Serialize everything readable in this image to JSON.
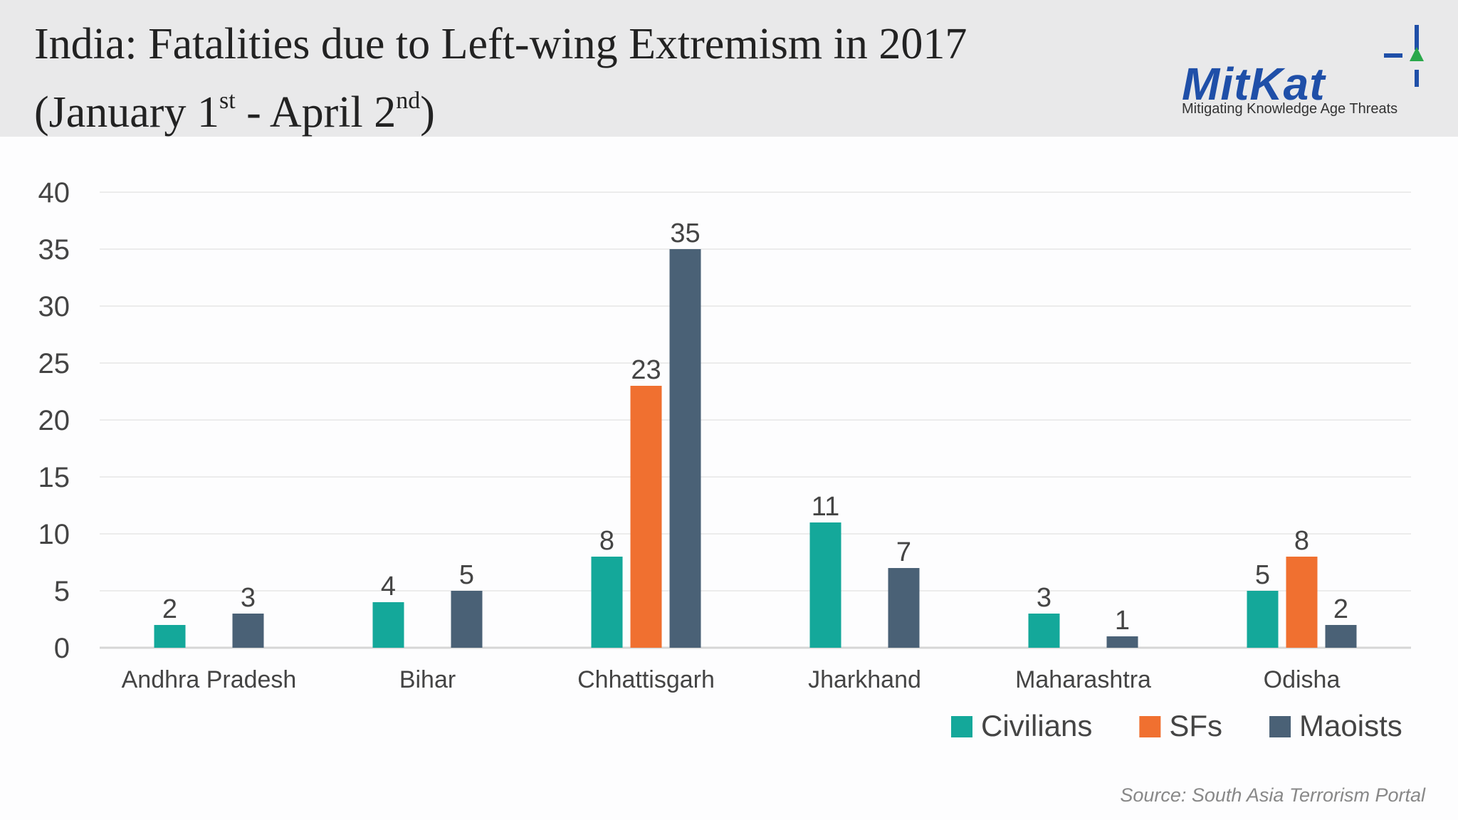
{
  "header": {
    "title_line1": "India: Fatalities due to Left-wing Extremism in 2017",
    "title_line2_a": "(January 1",
    "title_line2_sup1": "st",
    "title_line2_b": " - April 2",
    "title_line2_sup2": "nd",
    "title_line2_c": ")"
  },
  "logo": {
    "word": "MitKat",
    "tagline": "Mitigating Knowledge Age Threats",
    "icon": "crosshair-arrow-icon",
    "color": "#1f4fa8",
    "accent": "#2aa84a"
  },
  "chart_data": {
    "type": "bar",
    "categories": [
      "Andhra Pradesh",
      "Bihar",
      "Chhattisgarh",
      "Jharkhand",
      "Maharashtra",
      "Odisha"
    ],
    "series": [
      {
        "name": "Civilians",
        "color": "#14a89a",
        "values": [
          2,
          4,
          8,
          11,
          3,
          5
        ]
      },
      {
        "name": "SFs",
        "color": "#f07030",
        "values": [
          0,
          0,
          23,
          0,
          0,
          8
        ]
      },
      {
        "name": "Maoists",
        "color": "#4a6176",
        "values": [
          3,
          5,
          35,
          7,
          1,
          2
        ]
      }
    ],
    "ylim": [
      0,
      40
    ],
    "yticks": [
      0,
      5,
      10,
      15,
      20,
      25,
      30,
      35,
      40
    ],
    "grid": true,
    "legend": "bottom-right",
    "data_labels": true
  },
  "source": "Source: South Asia Terrorism Portal"
}
